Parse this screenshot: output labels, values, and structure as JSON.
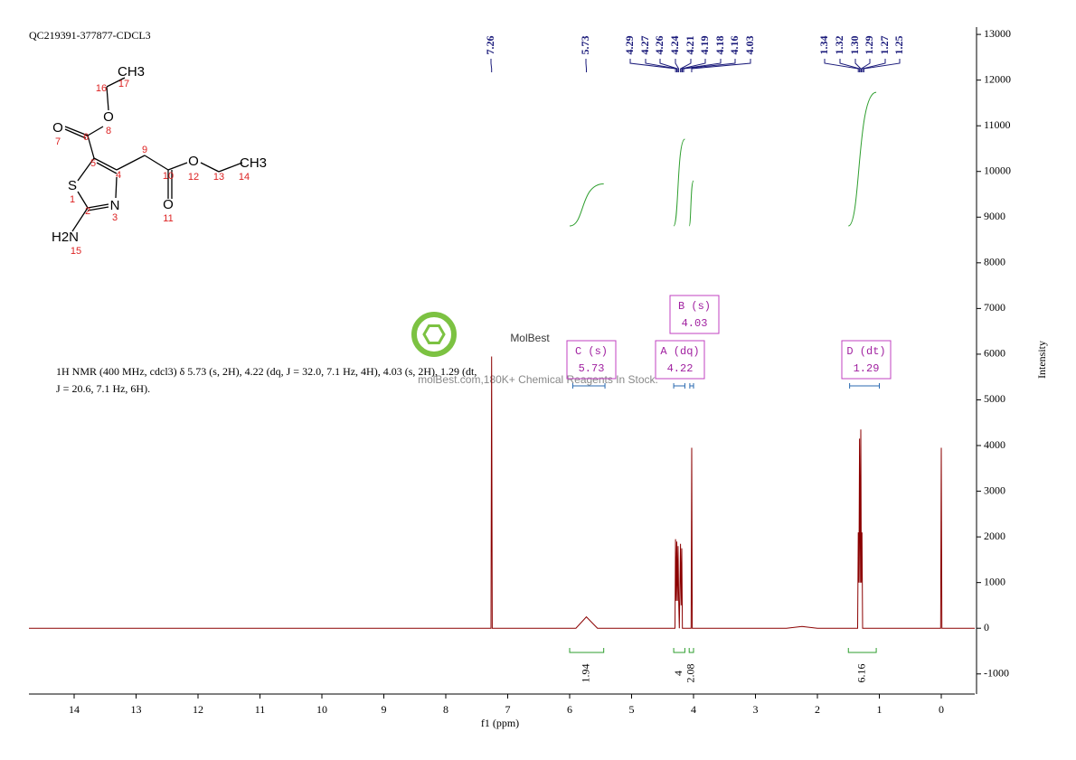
{
  "chart_data": {
    "type": "line",
    "title": "QC219391-377877-CDCL3",
    "xlabel": "f1 (ppm)",
    "ylabel": "Intensity",
    "xlim": [
      14.73,
      -0.54
    ],
    "ylim": [
      -1440,
      13160
    ],
    "xticks": [
      14,
      13,
      12,
      11,
      10,
      9,
      8,
      7,
      6,
      5,
      4,
      3,
      2,
      1,
      0
    ],
    "yticks": [
      -1000,
      0,
      1000,
      2000,
      3000,
      4000,
      5000,
      6000,
      7000,
      8000,
      9000,
      10000,
      11000,
      12000,
      13000
    ],
    "color": "#8b0000",
    "x": [
      14.73,
      7.5,
      7.27,
      7.26,
      7.25,
      5.9,
      5.73,
      5.55,
      4.3,
      4.29,
      4.28,
      4.27,
      4.26,
      4.25,
      4.24,
      4.23,
      4.21,
      4.2,
      4.19,
      4.18,
      4.04,
      4.03,
      4.02,
      2.5,
      2.25,
      2.0,
      1.35,
      1.34,
      1.33,
      1.32,
      1.31,
      1.3,
      1.29,
      1.28,
      1.27,
      0.01,
      0,
      -0.01,
      -0.54
    ],
    "values": [
      0,
      0,
      0,
      5950,
      0,
      0,
      250,
      0,
      0,
      1950,
      600,
      1900,
      600,
      1800,
      600,
      0,
      1850,
      500,
      1750,
      0,
      0,
      3950,
      0,
      0,
      40,
      0,
      0,
      2100,
      1000,
      4150,
      1000,
      4350,
      1000,
      2100,
      0,
      0,
      3950,
      0,
      0
    ],
    "peak_labels": [
      {
        "value": 7.26,
        "label": "7.26"
      },
      {
        "value": 5.73,
        "label": "5.73"
      },
      {
        "value": 4.29,
        "label": "4.29"
      },
      {
        "value": 4.27,
        "label": "4.27"
      },
      {
        "value": 4.26,
        "label": "4.26"
      },
      {
        "value": 4.24,
        "label": "4.24"
      },
      {
        "value": 4.21,
        "label": "4.21"
      },
      {
        "value": 4.19,
        "label": "4.19"
      },
      {
        "value": 4.18,
        "label": "4.18"
      },
      {
        "value": 4.16,
        "label": "4.16"
      },
      {
        "value": 4.03,
        "label": "4.03"
      },
      {
        "value": 1.34,
        "label": "1.34"
      },
      {
        "value": 1.32,
        "label": "1.32"
      },
      {
        "value": 1.3,
        "label": "1.30"
      },
      {
        "value": 1.29,
        "label": "1.29"
      },
      {
        "value": 1.27,
        "label": "1.27"
      },
      {
        "value": 1.25,
        "label": "1.25"
      }
    ],
    "integrals": [
      {
        "range": [
          6.0,
          5.45
        ],
        "value": 1.94
      },
      {
        "range": [
          4.32,
          4.14
        ],
        "value": 4.0
      },
      {
        "range": [
          4.07,
          4.0
        ],
        "value": 2.08
      },
      {
        "range": [
          1.5,
          1.05
        ],
        "value": 6.16
      }
    ],
    "multiplets": [
      {
        "name": "C (s)",
        "shift": 5.73,
        "range": [
          5.95,
          5.43
        ]
      },
      {
        "name": "A (dq)",
        "shift": 4.22,
        "range": [
          4.32,
          4.14
        ]
      },
      {
        "name": "B (s)",
        "shift": 4.03,
        "range": [
          4.06,
          4.0
        ]
      },
      {
        "name": "D (dt)",
        "shift": 1.29,
        "range": [
          1.48,
          1.0
        ]
      }
    ]
  },
  "description": [
    "1H NMR (400 MHz, cdcl3) δ 5.73 (s, 2H), 4.22 (dq, J = 32.0, 7.1 Hz, 4H), 4.03 (s, 2H), 1.29 (dt,",
    "J = 20.6, 7.1 Hz, 6H)."
  ],
  "watermark": {
    "brand": "MolBest",
    "tagline": "molBest.com,180K+ Chemical Reagents In Stock."
  },
  "structure": {
    "labels": [
      "CH3",
      "17",
      "16",
      "O",
      "8",
      "O",
      "7",
      "6",
      "5",
      "4",
      "9",
      "10",
      "O",
      "12",
      "13",
      "CH3",
      "14",
      "O",
      "11",
      "S",
      "1",
      "2",
      "N",
      "3",
      "H2N",
      "15"
    ]
  }
}
